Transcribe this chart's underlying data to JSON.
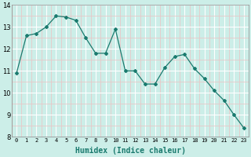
{
  "x": [
    0,
    1,
    2,
    3,
    4,
    5,
    6,
    7,
    8,
    9,
    10,
    11,
    12,
    13,
    14,
    15,
    16,
    17,
    18,
    19,
    20,
    21,
    22,
    23
  ],
  "y": [
    10.9,
    12.6,
    12.7,
    13.0,
    13.5,
    13.45,
    13.3,
    12.5,
    11.8,
    11.8,
    12.9,
    11.0,
    11.0,
    10.4,
    10.4,
    11.15,
    11.65,
    11.75,
    11.1,
    10.65,
    10.1,
    9.65,
    9.0,
    8.4
  ],
  "xlabel": "Humidex (Indice chaleur)",
  "xlim": [
    -0.5,
    23.5
  ],
  "ylim": [
    8,
    14
  ],
  "yticks": [
    8,
    9,
    10,
    11,
    12,
    13,
    14
  ],
  "xtick_labels": [
    "0",
    "1",
    "2",
    "3",
    "4",
    "5",
    "6",
    "7",
    "8",
    "9",
    "10",
    "11",
    "12",
    "13",
    "14",
    "15",
    "16",
    "17",
    "18",
    "19",
    "20",
    "21",
    "22",
    "23"
  ],
  "line_color": "#1a7a6e",
  "marker_color": "#1a7a6e",
  "bg_color": "#cceee8",
  "major_grid_color": "#ffffff",
  "minor_grid_color": "#e8c8c8"
}
